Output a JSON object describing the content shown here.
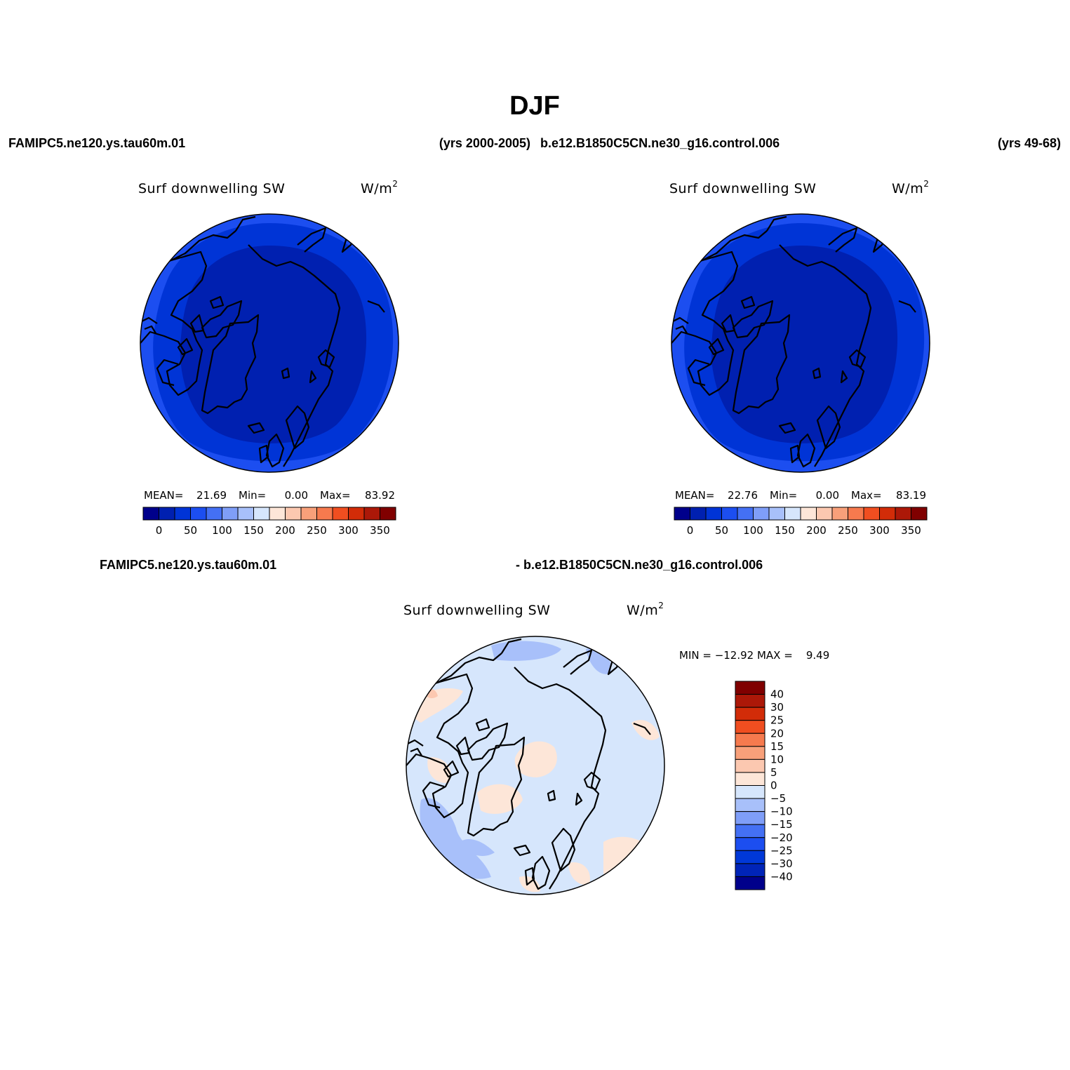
{
  "title": "DJF",
  "header_top": {
    "left_case": "FAMIPC5.ne120.ys.tau60m.01",
    "left_years": "(yrs 2000-2005)",
    "right_case": "b.e12.B1850C5CN.ne30_g16.control.006",
    "right_years": "(yrs 49-68)"
  },
  "header_bottom": {
    "left": "FAMIPC5.ne120.ys.tau60m.01",
    "right": "- b.e12.B1850C5CN.ne30_g16.control.006"
  },
  "panels": [
    {
      "variable": "Surf downwelling SW",
      "units_base": "W/m",
      "units_sup": "2",
      "mean_label": "MEAN=",
      "mean": "21.69",
      "min_label": "Min=",
      "min": "0.00",
      "max_label": "Max=",
      "max": "83.92"
    },
    {
      "variable": "Surf downwelling SW",
      "units_base": "W/m",
      "units_sup": "2",
      "mean_label": "MEAN=",
      "mean": "22.76",
      "min_label": "Min=",
      "min": "0.00",
      "max_label": "Max=",
      "max": "83.19"
    },
    {
      "variable": "Surf downwelling SW",
      "units_base": "W/m",
      "units_sup": "2",
      "minmax_text": "MIN = −12.92 MAX =    9.49"
    }
  ],
  "colorbar_abs": {
    "colors": [
      "#00008b",
      "#0020b0",
      "#0034d6",
      "#1c4ef0",
      "#4470f4",
      "#7f9ef8",
      "#a8c0fa",
      "#d6e6fc",
      "#fde6d8",
      "#fcc8b0",
      "#f8a07a",
      "#f67a4e",
      "#f04e20",
      "#d22c08",
      "#ac1808",
      "#800000"
    ],
    "labels": [
      "0",
      "50",
      "100",
      "150",
      "200",
      "250",
      "300",
      "350"
    ]
  },
  "colorbar_diff": {
    "colors": [
      "#00008b",
      "#0024b8",
      "#0038d8",
      "#1c4ef0",
      "#4470f4",
      "#7f9ef8",
      "#a8c0fa",
      "#d6e6fc",
      "#fde6d8",
      "#fcc8b0",
      "#f8a07a",
      "#f67a4e",
      "#f04e20",
      "#d22c08",
      "#ac1808",
      "#800000"
    ],
    "labels": [
      "−40",
      "−30",
      "−25",
      "−20",
      "−15",
      "−10",
      "−5",
      "0",
      "5",
      "10",
      "15",
      "20",
      "25",
      "30",
      "40"
    ]
  },
  "map_colors": {
    "abs_outer": "#1c4ef0",
    "abs_mid": "#0034d6",
    "abs_inner": "#0020b0",
    "diff_base": "#d6e6fc",
    "diff_neg": "#a8c0fa",
    "diff_pos": "#fde6d8",
    "diff_pos2": "#fcc8b0"
  }
}
